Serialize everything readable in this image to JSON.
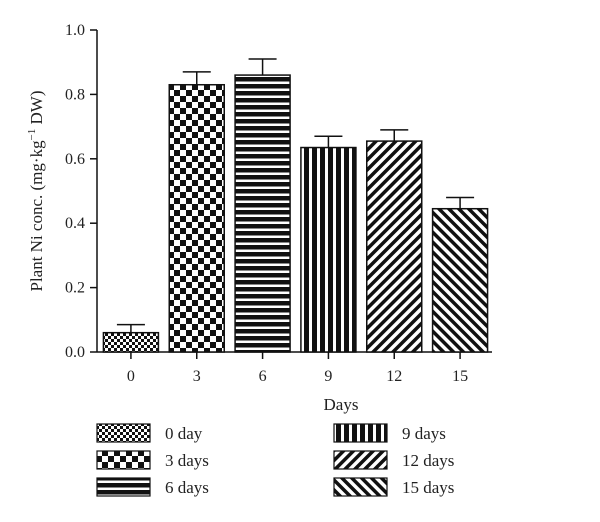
{
  "chart_data": {
    "type": "bar",
    "xlabel": "Days",
    "ylabel_parts": {
      "prefix": "Plant Ni conc. (mg·kg",
      "superscript": "−1",
      "suffix": " DW)"
    },
    "ylim": [
      0,
      1.0
    ],
    "yticks": [
      "0.0",
      "0.2",
      "0.4",
      "0.6",
      "0.8",
      "1.0"
    ],
    "categories": [
      "0",
      "3",
      "6",
      "9",
      "12",
      "15"
    ],
    "values": [
      0.06,
      0.83,
      0.86,
      0.635,
      0.655,
      0.445
    ],
    "errors": [
      0.025,
      0.04,
      0.05,
      0.035,
      0.035,
      0.035
    ],
    "legend": [
      "0 day",
      "3 days",
      "6 days",
      "9 days",
      "12 days",
      "15 days"
    ],
    "patterns": [
      "fine-checker",
      "coarse-checker",
      "horizontal-stripes",
      "vertical-stripes",
      "diagonal-stripes",
      "diagonal-stripes-reverse"
    ],
    "colors": {
      "ink": "#111111",
      "background": "#ffffff"
    },
    "grid": false
  }
}
